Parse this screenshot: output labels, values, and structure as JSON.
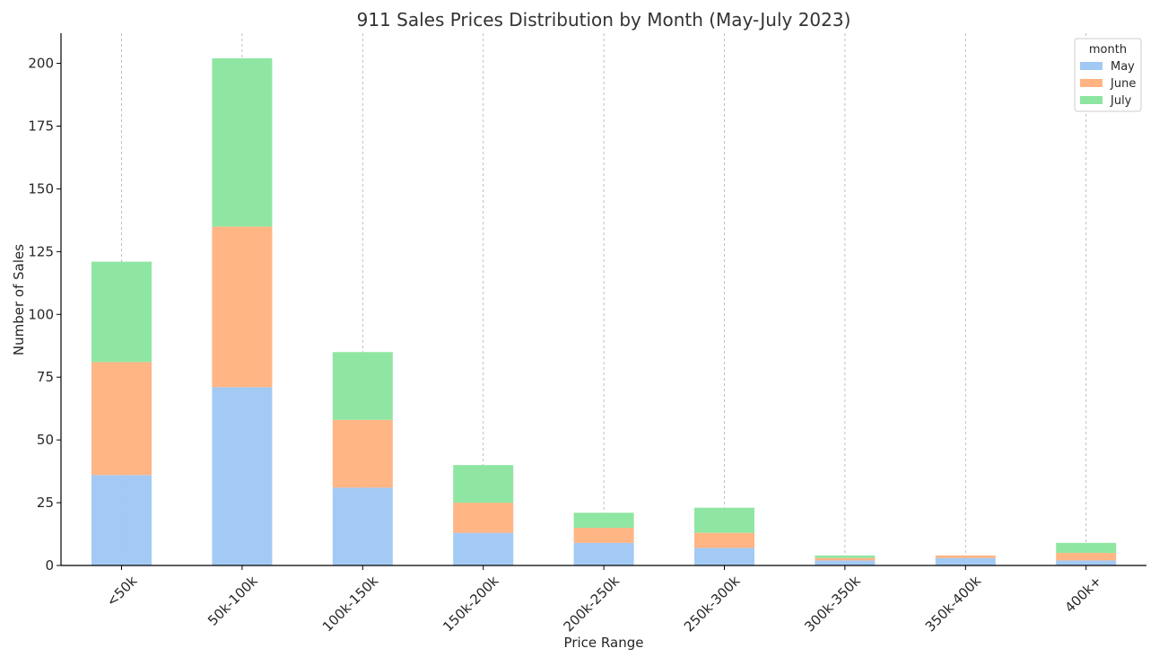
{
  "chart_data": {
    "type": "bar",
    "stacked": true,
    "title": "911 Sales Prices Distribution by Month (May-July 2023)",
    "xlabel": "Price Range",
    "ylabel": "Number of Sales",
    "ylim": [
      0,
      212
    ],
    "yticks": [
      0,
      25,
      50,
      75,
      100,
      125,
      150,
      175,
      200
    ],
    "categories": [
      "<50k",
      "50k-100k",
      "100k-150k",
      "150k-200k",
      "200k-250k",
      "250k-300k",
      "300k-350k",
      "350k-400k",
      "400k+"
    ],
    "series": [
      {
        "name": "May",
        "color": "#a1c9f4",
        "values": [
          36,
          71,
          31,
          13,
          9,
          7,
          2,
          3,
          2
        ]
      },
      {
        "name": "June",
        "color": "#ffb482",
        "values": [
          45,
          64,
          27,
          12,
          6,
          6,
          1,
          1,
          3
        ]
      },
      {
        "name": "July",
        "color": "#8de5a1",
        "values": [
          40,
          67,
          27,
          15,
          6,
          10,
          1,
          0,
          4
        ]
      }
    ],
    "legend": {
      "title": "month",
      "position": "top-right"
    },
    "grid": "vertical"
  }
}
